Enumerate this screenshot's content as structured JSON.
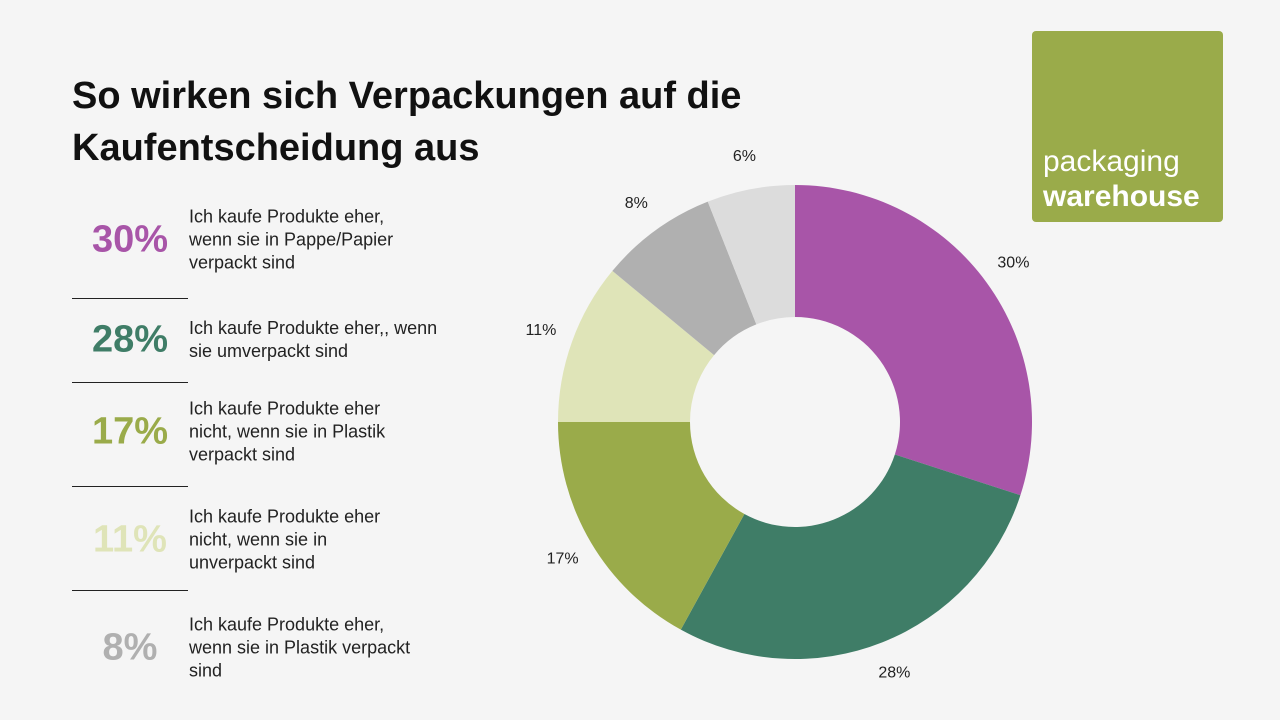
{
  "chart_data": {
    "type": "donut",
    "title": "So wirken sich Verpackungen auf die Kaufentscheidung aus",
    "categories": [
      "Ich kaufe Produkte eher, wenn sie in Pappe/Papier verpackt sind",
      "Ich kaufe Produkte eher,, wenn sie umverpackt sind",
      "Ich kaufe Produkte eher nicht, wenn sie in Plastik verpackt sind",
      "Ich kaufe Produkte eher nicht, wenn sie in unverpackt sind",
      "Ich kaufe Produkte eher, wenn sie in Plastik verpackt sind",
      null
    ],
    "values": [
      30,
      28,
      17,
      11,
      8,
      6
    ],
    "value_labels": [
      "30%",
      "28%",
      "17%",
      "11%",
      "8%",
      "6%"
    ],
    "colors": [
      "#a855a8",
      "#3f7d67",
      "#9aab4a",
      "#dfe4b8",
      "#b0b0b0",
      "#dcdcdc"
    ]
  },
  "logo": {
    "line1": "packaging",
    "line2": "warehouse"
  }
}
